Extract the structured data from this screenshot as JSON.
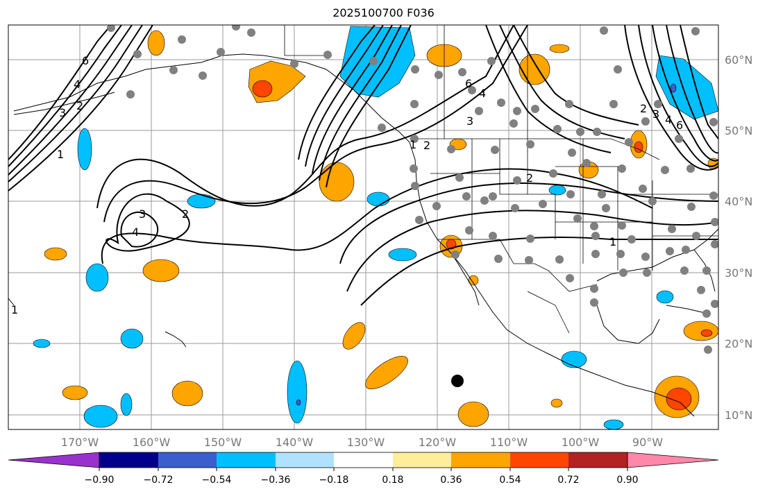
{
  "title": "2025100700 F036",
  "map": {
    "longitude_labels": [
      "170°W",
      "160°W",
      "150°W",
      "140°W",
      "130°W",
      "120°W",
      "110°W",
      "100°W",
      "90°W"
    ],
    "latitude_labels": [
      "60°N",
      "50°N",
      "40°N",
      "30°N",
      "20°N",
      "10°N"
    ],
    "contour_labels": [
      "6",
      "4",
      "3",
      "2",
      "1",
      "6",
      "4",
      "3",
      "2",
      "1",
      "3",
      "2",
      "4",
      "2",
      "1",
      "2",
      "3",
      "4",
      "6",
      "1"
    ],
    "low_center_marker": "dot"
  },
  "colorbar": {
    "tick_labels": [
      "−0.90",
      "−0.72",
      "−0.54",
      "−0.36",
      "−0.18",
      "0.18",
      "0.36",
      "0.54",
      "0.72",
      "0.90"
    ],
    "colors": [
      "#9932cc",
      "#00008b",
      "#3a5fcd",
      "#00bfff",
      "#b0e2ff",
      "#ffffff",
      "#ffee99",
      "#ffa500",
      "#ff4500",
      "#b22222",
      "#ff88aa"
    ]
  }
}
